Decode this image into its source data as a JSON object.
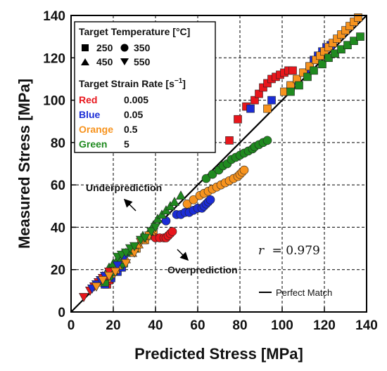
{
  "chart_data": {
    "type": "scatter",
    "xlabel": "Predicted Stress [MPa]",
    "ylabel": "Measured Stress [MPa]",
    "xlim": [
      0,
      140
    ],
    "ylim": [
      0,
      140
    ],
    "xticks": [
      "0",
      "20",
      "40",
      "60",
      "80",
      "100",
      "120",
      "140"
    ],
    "yticks": [
      "0",
      "20",
      "40",
      "60",
      "80",
      "100",
      "120",
      "140"
    ],
    "grid": true,
    "legend_position": "top-left",
    "legend": {
      "temp_title": "Target Temperature [°C]",
      "temps": [
        {
          "marker": "square",
          "label": "250"
        },
        {
          "marker": "circle",
          "label": "350"
        },
        {
          "marker": "triangle-up",
          "label": "450"
        },
        {
          "marker": "triangle-down",
          "label": "550"
        }
      ],
      "rate_title": "Target Strain Rate [s",
      "rate_title_sup": "−1",
      "rate_title_end": "]",
      "rates": [
        {
          "color_name": "Red",
          "value": "0.005",
          "color": "#e8161c"
        },
        {
          "color_name": "Blue",
          "value": "0.05",
          "color": "#1b2cd6"
        },
        {
          "color_name": "Orange",
          "value": "0.5",
          "color": "#f7931e"
        },
        {
          "color_name": "Green",
          "value": "5",
          "color": "#1f8a1f"
        }
      ]
    },
    "annotations": {
      "under": "Underprediction",
      "over": "Overprediction",
      "r_label": "r",
      "r_value": "= 0.979",
      "perfect": "Perfect Match"
    },
    "series": [
      {
        "marker": "square",
        "color": "#e8161c",
        "points": [
          [
            17,
            13
          ],
          [
            18,
            15
          ],
          [
            19,
            17
          ],
          [
            75,
            81
          ],
          [
            79,
            91
          ],
          [
            83,
            97
          ],
          [
            87,
            100
          ],
          [
            89,
            103
          ],
          [
            91,
            106
          ],
          [
            93,
            108
          ],
          [
            95,
            110
          ],
          [
            97,
            111
          ],
          [
            99,
            112
          ],
          [
            101,
            113
          ],
          [
            103,
            114
          ],
          [
            105,
            114
          ]
        ]
      },
      {
        "marker": "square",
        "color": "#1b2cd6",
        "points": [
          [
            16,
            13
          ],
          [
            19,
            16
          ],
          [
            22,
            19
          ],
          [
            24,
            21
          ],
          [
            85,
            96
          ],
          [
            95,
            100
          ],
          [
            104,
            106
          ],
          [
            107,
            109
          ],
          [
            111,
            113
          ],
          [
            113,
            116
          ],
          [
            115,
            119
          ],
          [
            117,
            121
          ],
          [
            119,
            123
          ],
          [
            121,
            125
          ],
          [
            123,
            126
          ]
        ]
      },
      {
        "marker": "square",
        "color": "#f7931e",
        "points": [
          [
            15,
            14
          ],
          [
            17,
            16
          ],
          [
            19,
            18
          ],
          [
            21,
            20
          ],
          [
            31,
            30
          ],
          [
            35,
            34
          ],
          [
            37,
            36
          ],
          [
            39,
            37
          ],
          [
            93,
            96
          ],
          [
            101,
            104
          ],
          [
            104,
            107
          ],
          [
            107,
            110
          ],
          [
            110,
            113
          ],
          [
            113,
            116
          ],
          [
            116,
            119
          ],
          [
            118,
            121
          ],
          [
            120,
            123
          ],
          [
            122,
            125
          ],
          [
            124,
            127
          ],
          [
            126,
            129
          ],
          [
            128,
            131
          ],
          [
            130,
            133
          ],
          [
            132,
            135
          ],
          [
            134,
            137
          ],
          [
            136,
            139
          ]
        ]
      },
      {
        "marker": "square",
        "color": "#1f8a1f",
        "points": [
          [
            16,
            14
          ],
          [
            18,
            17
          ],
          [
            20,
            19
          ],
          [
            23,
            22
          ],
          [
            25,
            23
          ],
          [
            104,
            104
          ],
          [
            108,
            107
          ],
          [
            112,
            111
          ],
          [
            115,
            114
          ],
          [
            119,
            117
          ],
          [
            122,
            120
          ],
          [
            125,
            122
          ],
          [
            128,
            124
          ],
          [
            131,
            126
          ],
          [
            134,
            128
          ],
          [
            137,
            130
          ]
        ]
      },
      {
        "marker": "circle",
        "color": "#e8161c",
        "points": [
          [
            40,
            35
          ],
          [
            42,
            35
          ],
          [
            44,
            35
          ],
          [
            45,
            35
          ],
          [
            46,
            36
          ],
          [
            47,
            37
          ],
          [
            48,
            38
          ]
        ]
      },
      {
        "marker": "circle",
        "color": "#1b2cd6",
        "points": [
          [
            45,
            43
          ],
          [
            50,
            46
          ],
          [
            52,
            46
          ],
          [
            54,
            47
          ],
          [
            56,
            47
          ],
          [
            58,
            48
          ],
          [
            60,
            49
          ],
          [
            62,
            49
          ],
          [
            63,
            50
          ],
          [
            64,
            51
          ],
          [
            65,
            52
          ],
          [
            66,
            53
          ]
        ]
      },
      {
        "marker": "circle",
        "color": "#f7931e",
        "points": [
          [
            55,
            51
          ],
          [
            58,
            53
          ],
          [
            61,
            55
          ],
          [
            63,
            56
          ],
          [
            65,
            57
          ],
          [
            67,
            58
          ],
          [
            69,
            59
          ],
          [
            71,
            60
          ],
          [
            73,
            61
          ],
          [
            75,
            62
          ],
          [
            77,
            63
          ],
          [
            79,
            64
          ],
          [
            80,
            65
          ],
          [
            81,
            66
          ],
          [
            82,
            67
          ]
        ]
      },
      {
        "marker": "circle",
        "color": "#1f8a1f",
        "points": [
          [
            64,
            63
          ],
          [
            67,
            65
          ],
          [
            70,
            67
          ],
          [
            72,
            69
          ],
          [
            74,
            70
          ],
          [
            76,
            72
          ],
          [
            78,
            73
          ],
          [
            80,
            74
          ],
          [
            82,
            75
          ],
          [
            84,
            76
          ],
          [
            86,
            77
          ],
          [
            87,
            78
          ],
          [
            89,
            79
          ],
          [
            91,
            80
          ],
          [
            93,
            81
          ]
        ]
      },
      {
        "marker": "triangle-up",
        "color": "#f7931e",
        "points": [
          [
            15,
            17
          ],
          [
            17,
            19
          ],
          [
            19,
            21
          ],
          [
            22,
            22
          ],
          [
            26,
            25
          ],
          [
            29,
            28
          ],
          [
            32,
            32
          ],
          [
            34,
            34
          ],
          [
            36,
            36
          ],
          [
            38,
            38
          ]
        ]
      },
      {
        "marker": "triangle-up",
        "color": "#1f8a1f",
        "points": [
          [
            18,
            21
          ],
          [
            20,
            23
          ],
          [
            22,
            25
          ],
          [
            24,
            27
          ],
          [
            26,
            28
          ],
          [
            28,
            29
          ],
          [
            30,
            30
          ],
          [
            34,
            36
          ],
          [
            37,
            38
          ],
          [
            39,
            41
          ],
          [
            41,
            44
          ],
          [
            43,
            46
          ],
          [
            45,
            48
          ],
          [
            47,
            50
          ],
          [
            49,
            52
          ],
          [
            52,
            55
          ]
        ]
      },
      {
        "marker": "triangle-down",
        "color": "#e8161c",
        "points": [
          [
            6,
            7
          ],
          [
            9,
            10
          ],
          [
            11,
            12
          ],
          [
            13,
            14
          ],
          [
            15,
            16
          ],
          [
            17,
            17
          ],
          [
            18,
            19
          ]
        ]
      },
      {
        "marker": "triangle-down",
        "color": "#1b2cd6",
        "points": [
          [
            10,
            11
          ],
          [
            12,
            13
          ],
          [
            14,
            15
          ],
          [
            16,
            17
          ],
          [
            22,
            22
          ],
          [
            25,
            25
          ]
        ]
      },
      {
        "marker": "triangle-down",
        "color": "#f7931e",
        "points": [
          [
            12,
            12
          ],
          [
            15,
            15
          ],
          [
            18,
            17
          ],
          [
            21,
            19
          ],
          [
            26,
            23
          ],
          [
            30,
            28
          ],
          [
            33,
            33
          ],
          [
            35,
            35
          ],
          [
            37,
            36
          ]
        ]
      },
      {
        "marker": "triangle-down",
        "color": "#1f8a1f",
        "points": [
          [
            22,
            26
          ],
          [
            24,
            27
          ],
          [
            26,
            28
          ],
          [
            28,
            30
          ],
          [
            30,
            31
          ],
          [
            33,
            34
          ],
          [
            35,
            35
          ],
          [
            38,
            38
          ],
          [
            40,
            40
          ]
        ]
      }
    ]
  }
}
